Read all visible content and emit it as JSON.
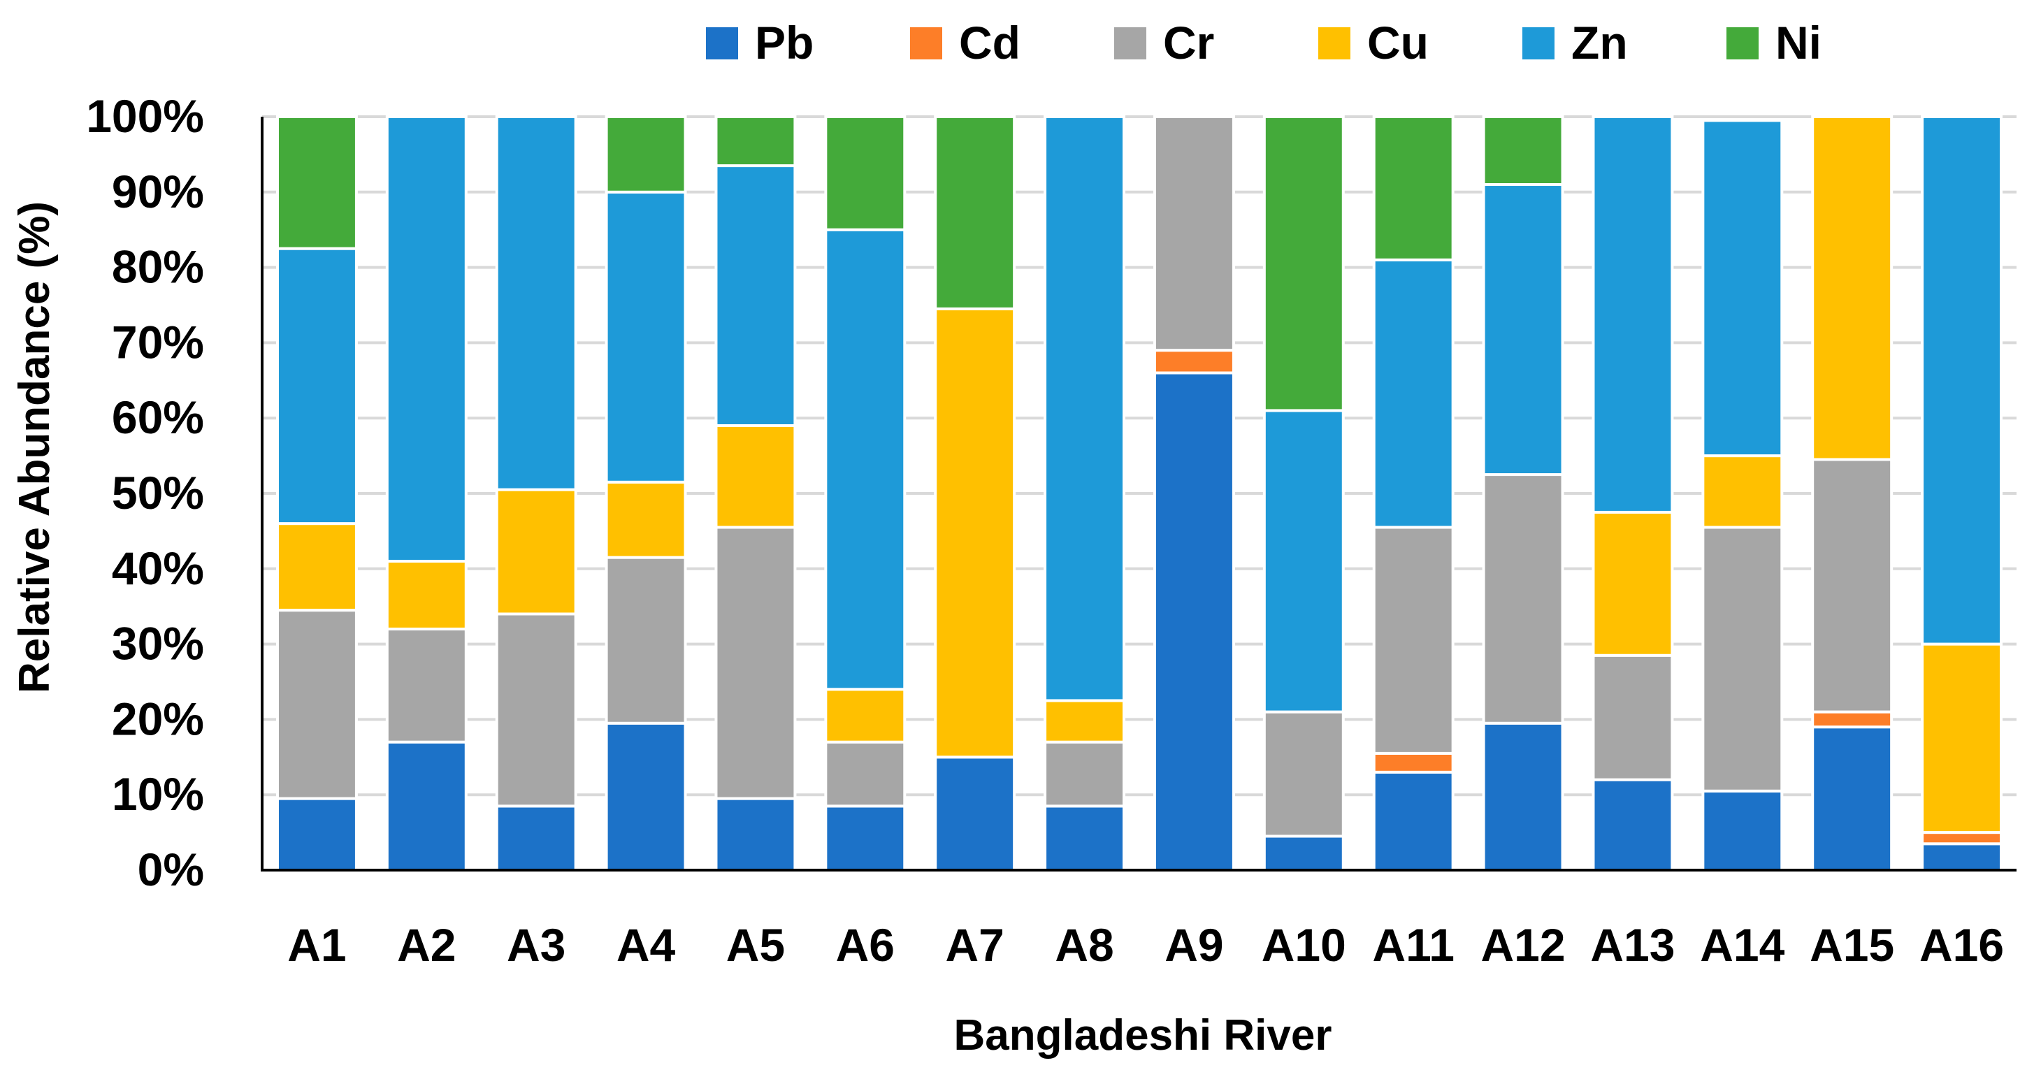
{
  "chart_data": {
    "type": "bar",
    "stacked": true,
    "normalized": true,
    "title": "",
    "xlabel": "Bangladeshi River",
    "ylabel": "Relative Abundance (%)",
    "ylim": [
      0,
      100
    ],
    "ytick_labels": [
      "0%",
      "10%",
      "20%",
      "30%",
      "40%",
      "50%",
      "60%",
      "70%",
      "80%",
      "90%",
      "100%"
    ],
    "grid": true,
    "legend_position": "top-center",
    "categories": [
      "A1",
      "A2",
      "A3",
      "A4",
      "A5",
      "A6",
      "A7",
      "A8",
      "A9",
      "A10",
      "A11",
      "A12",
      "A13",
      "A14",
      "A15",
      "A16"
    ],
    "series": [
      {
        "name": "Pb",
        "color": "#1c72c8",
        "values": [
          9.5,
          17,
          8.5,
          19.5,
          9.5,
          8.5,
          15,
          8.5,
          66,
          4.5,
          13,
          19.5,
          12,
          10.5,
          19,
          3.5
        ]
      },
      {
        "name": "Cd",
        "color": "#fd7e28",
        "values": [
          0,
          0,
          0,
          0,
          0,
          0,
          0,
          0,
          3,
          0,
          2.5,
          0,
          0,
          0,
          2,
          1.5
        ]
      },
      {
        "name": "Cr",
        "color": "#a6a6a6",
        "values": [
          25,
          15,
          25.5,
          22,
          36,
          8.5,
          0,
          8.5,
          31,
          16.5,
          30,
          33,
          16.5,
          35,
          33.5,
          0
        ]
      },
      {
        "name": "Cu",
        "color": "#ffc000",
        "values": [
          11.5,
          9,
          16.5,
          10,
          13.5,
          7,
          59.5,
          5.5,
          0,
          0,
          0,
          0,
          19,
          9.5,
          45.5,
          25
        ]
      },
      {
        "name": "Zn",
        "color": "#1e9ad8",
        "values": [
          36.5,
          59,
          49.5,
          38.5,
          34.5,
          61,
          0,
          77.5,
          0,
          40,
          35.5,
          38.5,
          52.5,
          44.5,
          0,
          70
        ]
      },
      {
        "name": "Ni",
        "color": "#44aa3a",
        "values": [
          17.5,
          0,
          0,
          10,
          6.5,
          15,
          25.5,
          0,
          0,
          39,
          19,
          9,
          0,
          0,
          0,
          0
        ]
      }
    ]
  }
}
